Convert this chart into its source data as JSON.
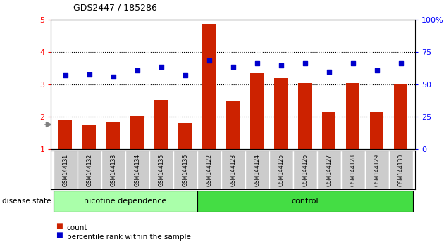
{
  "title": "GDS2447 / 185286",
  "samples": [
    "GSM144131",
    "GSM144132",
    "GSM144133",
    "GSM144134",
    "GSM144135",
    "GSM144136",
    "GSM144122",
    "GSM144123",
    "GSM144124",
    "GSM144125",
    "GSM144126",
    "GSM144127",
    "GSM144128",
    "GSM144129",
    "GSM144130"
  ],
  "counts": [
    1.9,
    1.75,
    1.85,
    2.02,
    2.52,
    1.82,
    4.87,
    2.5,
    3.35,
    3.2,
    3.05,
    2.16,
    3.05,
    2.15,
    3.0
  ],
  "percentile_raw": [
    3.3,
    3.32,
    3.25,
    3.45,
    3.55,
    3.3,
    3.75,
    3.55,
    3.65,
    3.6,
    3.65,
    3.4,
    3.65,
    3.45,
    3.65
  ],
  "bar_color": "#cc2200",
  "dot_color": "#0000cc",
  "ylim_left": [
    1,
    5
  ],
  "yticks_left": [
    1,
    2,
    3,
    4,
    5
  ],
  "ytick_labels_right": [
    "0",
    "25",
    "50",
    "75",
    "100%"
  ],
  "ytick_vals_right": [
    1,
    2,
    3,
    4,
    5
  ],
  "group1_label": "nicotine dependence",
  "group2_label": "control",
  "group1_count": 6,
  "group2_count": 9,
  "disease_state_label": "disease state",
  "legend_count_label": "count",
  "legend_percentile_label": "percentile rank within the sample",
  "background_color": "#ffffff",
  "group1_color": "#aaffaa",
  "group2_color": "#44dd44",
  "tick_label_bg": "#cccccc"
}
